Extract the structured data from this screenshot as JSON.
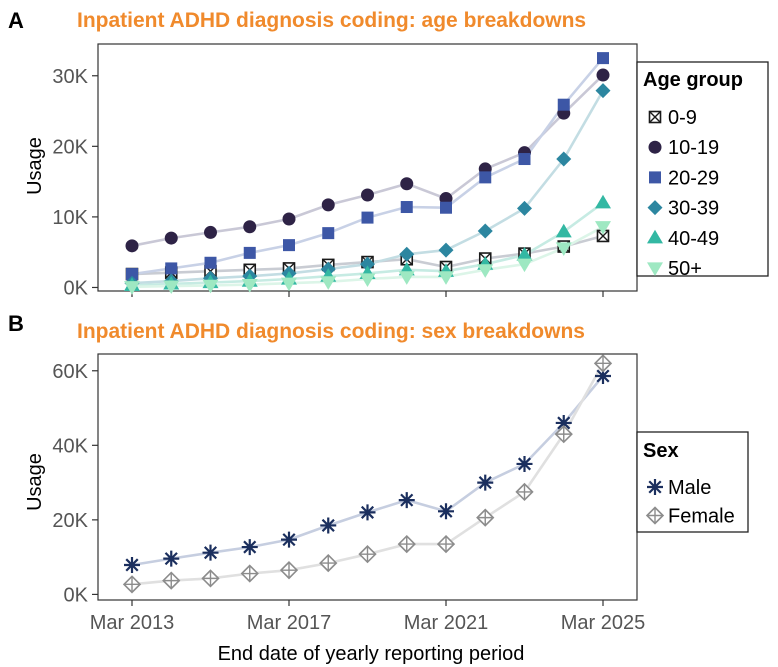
{
  "chart_data": [
    {
      "panel_letter": "A",
      "type": "line",
      "title": "Inpatient ADHD diagnosis coding: age breakdowns",
      "xlabel": "",
      "ylabel": "Usage",
      "x": [
        "2013-03",
        "2014-03",
        "2015-03",
        "2016-03",
        "2017-03",
        "2018-03",
        "2019-03",
        "2020-03",
        "2021-03",
        "2022-03",
        "2023-03",
        "2024-03",
        "2025-03"
      ],
      "x_tick_labels": [
        "",
        "",
        "",
        ""
      ],
      "ylim": [
        -500,
        34500
      ],
      "y_ticks": [
        0,
        10000,
        20000,
        30000
      ],
      "y_tick_labels": [
        "0K",
        "10K",
        "20K",
        "30K"
      ],
      "legend": {
        "title": "Age group",
        "placement": "right"
      },
      "grid": false,
      "series": [
        {
          "name": "0-9",
          "marker": "square-x",
          "color": "#1a1a1a",
          "fill": "#ffffff",
          "line_color": "#c9ccd3",
          "values": [
            1900,
            2100,
            2300,
            2500,
            2700,
            3200,
            3600,
            4000,
            2900,
            4100,
            4800,
            5800,
            7300
          ]
        },
        {
          "name": "10-19",
          "marker": "circle",
          "color": "#2e2346",
          "line_color": "#c9c8d6",
          "values": [
            5900,
            7000,
            7800,
            8600,
            9700,
            11700,
            13100,
            14700,
            12600,
            16800,
            19100,
            24700,
            30100
          ]
        },
        {
          "name": "20-29",
          "marker": "square",
          "color": "#3d57a6",
          "line_color": "#c8d1e6",
          "values": [
            1900,
            2700,
            3500,
            4900,
            6000,
            7700,
            9900,
            11400,
            11300,
            15600,
            18200,
            25900,
            32500
          ]
        },
        {
          "name": "30-39",
          "marker": "diamond",
          "color": "#2c86a0",
          "line_color": "#c3dde3",
          "values": [
            600,
            900,
            1300,
            1600,
            2000,
            2600,
            3300,
            4700,
            5300,
            8000,
            11200,
            18200,
            27900
          ]
        },
        {
          "name": "40-49",
          "marker": "triangle-up",
          "color": "#33b8a3",
          "line_color": "#c6ebe3",
          "values": [
            300,
            500,
            700,
            900,
            1200,
            1600,
            2000,
            2500,
            2300,
            3300,
            4600,
            7900,
            12000
          ]
        },
        {
          "name": "50+",
          "marker": "triangle-down",
          "color": "#9ee8c2",
          "line_color": "#dcf5e8",
          "values": [
            100,
            200,
            300,
            400,
            600,
            800,
            1200,
            1500,
            1500,
            2500,
            3300,
            5600,
            8600
          ]
        }
      ]
    },
    {
      "panel_letter": "B",
      "type": "line",
      "title": "Inpatient ADHD diagnosis coding: sex breakdowns",
      "xlabel": "End date of yearly reporting period",
      "ylabel": "Usage",
      "x": [
        "2013-03",
        "2014-03",
        "2015-03",
        "2016-03",
        "2017-03",
        "2018-03",
        "2019-03",
        "2020-03",
        "2021-03",
        "2022-03",
        "2023-03",
        "2024-03",
        "2025-03"
      ],
      "x_tick_labels": [
        "Mar 2013",
        "Mar 2017",
        "Mar 2021",
        "Mar 2025"
      ],
      "ylim": [
        -1500,
        64500
      ],
      "y_ticks": [
        0,
        20000,
        40000,
        60000
      ],
      "y_tick_labels": [
        "0K",
        "20K",
        "40K",
        "60K"
      ],
      "legend": {
        "title": "Sex",
        "placement": "right"
      },
      "grid": false,
      "series": [
        {
          "name": "Male",
          "marker": "asterisk",
          "color": "#1b2f5e",
          "line_color": "#c6cee0",
          "values": [
            7900,
            9600,
            11200,
            12700,
            14700,
            18500,
            22000,
            25300,
            22300,
            30000,
            35000,
            46000,
            58600
          ]
        },
        {
          "name": "Female",
          "marker": "diamond-plus",
          "color": "#8c8c8c",
          "line_color": "#e0e0e0",
          "values": [
            2700,
            3700,
            4300,
            5600,
            6500,
            8400,
            10800,
            13500,
            13500,
            20600,
            27500,
            43000,
            62000
          ]
        }
      ]
    }
  ]
}
